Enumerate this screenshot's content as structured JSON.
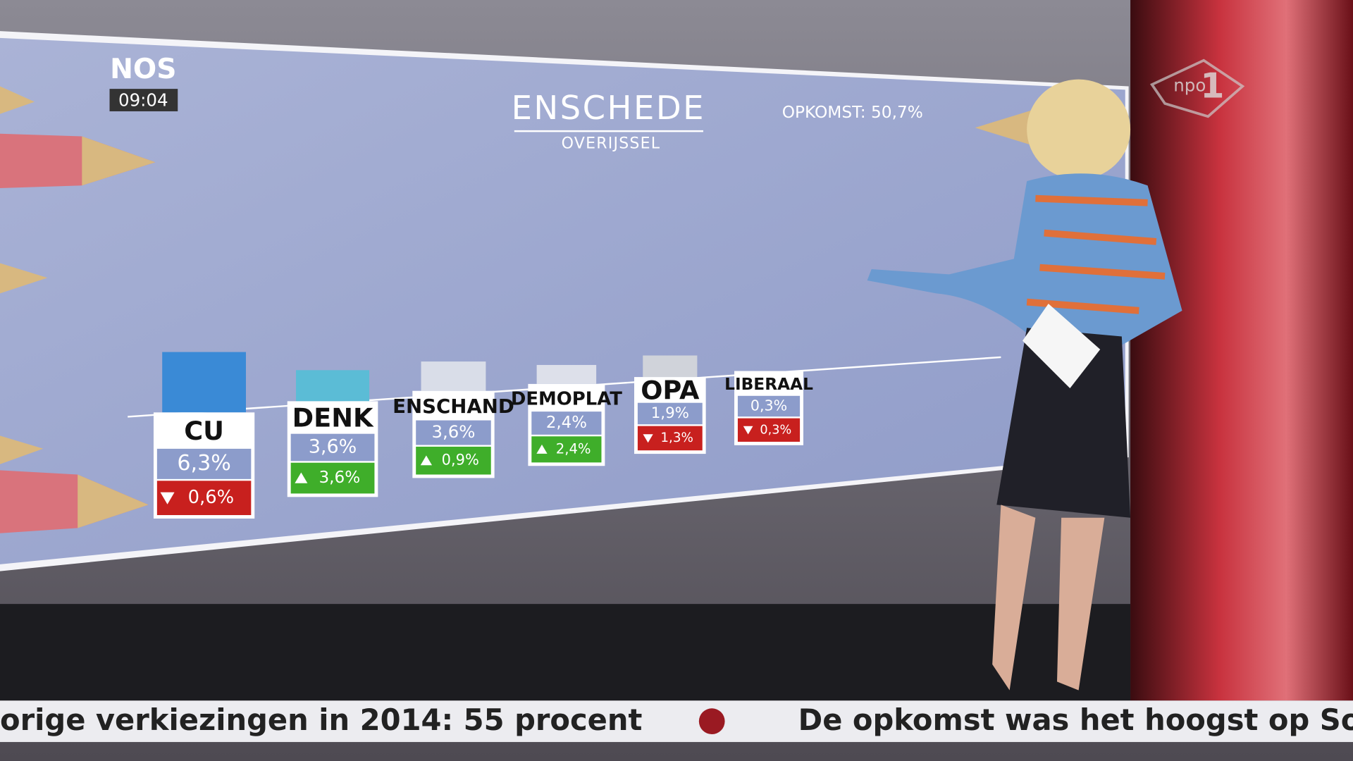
{
  "logo": "NOS",
  "time": "09:04",
  "channel_logo": "npo",
  "channel_number": "1",
  "board": {
    "city": "ENSCHEDE",
    "province": "OVERIJSSEL",
    "turnout": "OPKOMST: 50,7%",
    "parties": [
      {
        "name": "CU",
        "share": "6,3%",
        "change": "0,6%",
        "direction": "down",
        "color": "#3a8ad6"
      },
      {
        "name": "DENK",
        "share": "3,6%",
        "change": "3,6%",
        "direction": "up",
        "color": "#5bbcd6"
      },
      {
        "name": "ENSCHAND",
        "share": "3,6%",
        "change": "0,9%",
        "direction": "up",
        "color": "#d9dde8"
      },
      {
        "name": "DEMOPLAT",
        "share": "2,4%",
        "change": "2,4%",
        "direction": "up",
        "color": "#dde0ea"
      },
      {
        "name": "OPA",
        "share": "1,9%",
        "change": "1,3%",
        "direction": "down",
        "color": "#d0d3da"
      },
      {
        "name": "LIBERAAL",
        "share": "0,3%",
        "change": "0,3%",
        "direction": "down",
        "color": "#d6d9e2"
      }
    ]
  },
  "ticker": [
    "orige verkiezingen in 2014: 55 procent",
    "De opkomst was het hoogst op So"
  ]
}
